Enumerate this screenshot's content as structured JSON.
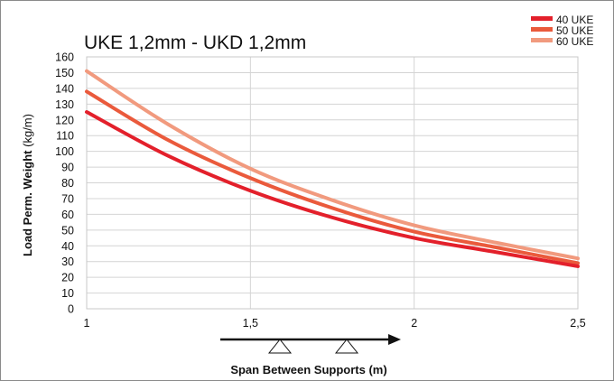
{
  "chart_data": {
    "type": "line",
    "title": "UKE 1,2mm - UKD 1,2mm",
    "ylabel_bold": "Load Perm. Weight",
    "ylabel_unit": "(kg/m)",
    "xlabel": "Span Between Supports (m)",
    "xlim": [
      1,
      2.5
    ],
    "ylim": [
      0,
      160
    ],
    "x_ticks": [
      "1",
      "1,5",
      "2",
      "2,5"
    ],
    "x_tick_values": [
      1,
      1.5,
      2,
      2.5
    ],
    "y_ticks": [
      0,
      10,
      20,
      30,
      40,
      50,
      60,
      70,
      80,
      90,
      100,
      110,
      120,
      130,
      140,
      150,
      160
    ],
    "grid": true,
    "legend_position": "top-right",
    "series": [
      {
        "name": "40 UKE",
        "color": "#e3202b",
        "x": [
          1,
          1.25,
          1.5,
          1.75,
          2,
          2.25,
          2.5
        ],
        "values": [
          125,
          97,
          75,
          58,
          45,
          36,
          27
        ]
      },
      {
        "name": "50 UKE",
        "color": "#ea5a3c",
        "x": [
          1,
          1.25,
          1.5,
          1.75,
          2,
          2.25,
          2.5
        ],
        "values": [
          138,
          107,
          83,
          64,
          49,
          39,
          29
        ]
      },
      {
        "name": "60 UKE",
        "color": "#f19a7e",
        "x": [
          1,
          1.25,
          1.5,
          1.75,
          2,
          2.25,
          2.5
        ],
        "values": [
          151,
          117,
          89,
          69,
          53,
          42,
          32
        ]
      }
    ],
    "annotation": "support-span-diagram"
  }
}
